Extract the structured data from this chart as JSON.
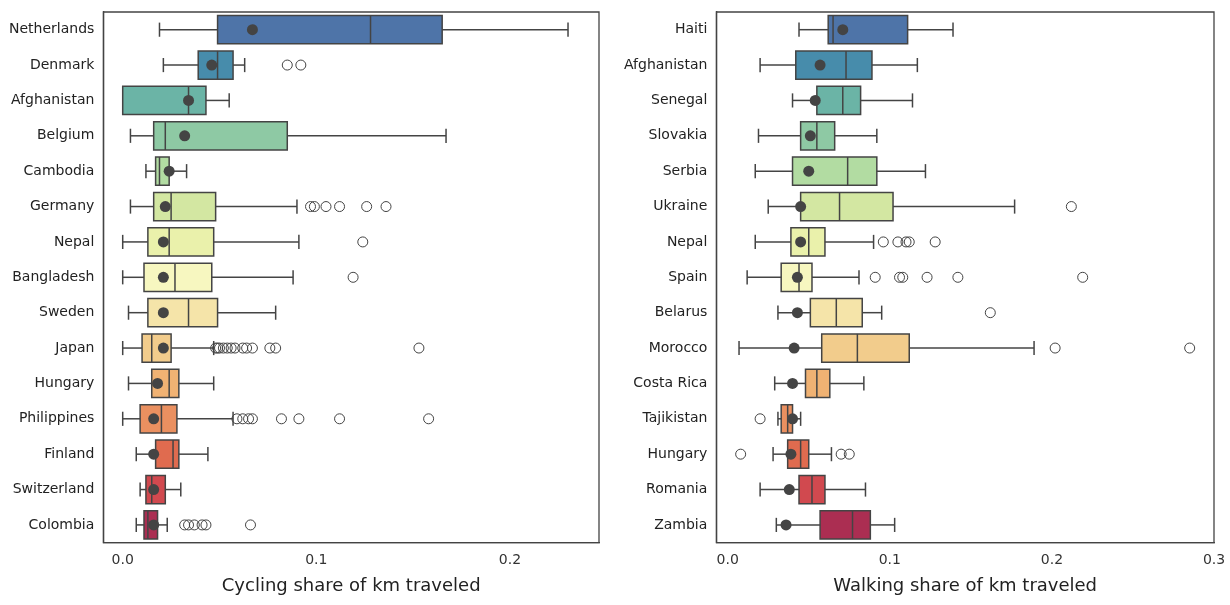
{
  "chart_data": [
    {
      "type": "box",
      "orientation": "horizontal",
      "xlabel": "Cycling share of km traveled",
      "categories": [
        "Netherlands",
        "Denmark",
        "Afghanistan",
        "Belgium",
        "Cambodia",
        "Germany",
        "Nepal",
        "Bangladesh",
        "Sweden",
        "Japan",
        "Hungary",
        "Philippines",
        "Finland",
        "Switzerland",
        "Colombia"
      ],
      "colors": [
        "#4e74a8",
        "#478cab",
        "#6bb4a6",
        "#8ec9a4",
        "#b2dca2",
        "#d3e7a2",
        "#eaf1ab",
        "#f7f7c0",
        "#f5e4a9",
        "#f2cc8c",
        "#f0b273",
        "#ea9060",
        "#e06b4f",
        "#d1494f",
        "#ab2e52"
      ],
      "boxes": [
        {
          "low": 0.019,
          "q1": 0.049,
          "median": 0.128,
          "q3": 0.165,
          "high": 0.23,
          "mean": 0.067
        },
        {
          "low": 0.021,
          "q1": 0.039,
          "median": 0.049,
          "q3": 0.057,
          "high": 0.063,
          "mean": 0.046,
          "outliers": [
            0.085,
            0.092
          ]
        },
        {
          "low": 0,
          "q1": 0,
          "median": 0.034,
          "q3": 0.043,
          "high": 0.055,
          "mean": 0.034
        },
        {
          "low": 0.004,
          "q1": 0.016,
          "median": 0.022,
          "q3": 0.085,
          "high": 0.167,
          "mean": 0.032
        },
        {
          "low": 0.012,
          "q1": 0.017,
          "median": 0.019,
          "q3": 0.024,
          "high": 0.033,
          "mean": 0.024
        },
        {
          "low": 0.004,
          "q1": 0.016,
          "median": 0.025,
          "q3": 0.048,
          "high": 0.09,
          "mean": 0.022,
          "outliers": [
            0.097,
            0.099,
            0.105,
            0.112,
            0.126,
            0.136
          ]
        },
        {
          "low": 0,
          "q1": 0.013,
          "median": 0.024,
          "q3": 0.047,
          "high": 0.091,
          "mean": 0.021,
          "outliers": [
            0.124
          ]
        },
        {
          "low": 0,
          "q1": 0.011,
          "median": 0.027,
          "q3": 0.046,
          "high": 0.088,
          "mean": 0.021,
          "outliers": [
            0.119
          ]
        },
        {
          "low": 0.003,
          "q1": 0.013,
          "median": 0.034,
          "q3": 0.049,
          "high": 0.079,
          "mean": 0.021
        },
        {
          "low": 0,
          "q1": 0.01,
          "median": 0.015,
          "q3": 0.025,
          "high": 0.047,
          "mean": 0.021,
          "outliers": [
            0.048,
            0.049,
            0.05,
            0.052,
            0.054,
            0.056,
            0.058,
            0.062,
            0.064,
            0.067,
            0.076,
            0.079,
            0.153
          ]
        },
        {
          "low": 0.003,
          "q1": 0.015,
          "median": 0.024,
          "q3": 0.029,
          "high": 0.047,
          "mean": 0.018
        },
        {
          "low": 0,
          "q1": 0.009,
          "median": 0.02,
          "q3": 0.028,
          "high": 0.057,
          "mean": 0.016,
          "outliers": [
            0.059,
            0.062,
            0.065,
            0.067,
            0.082,
            0.091,
            0.112,
            0.158
          ]
        },
        {
          "low": 0.007,
          "q1": 0.017,
          "median": 0.026,
          "q3": 0.029,
          "high": 0.044,
          "mean": 0.016
        },
        {
          "low": 0.009,
          "q1": 0.012,
          "median": 0.015,
          "q3": 0.022,
          "high": 0.03,
          "mean": 0.016
        },
        {
          "low": 0.007,
          "q1": 0.011,
          "median": 0.013,
          "q3": 0.018,
          "high": 0.023,
          "mean": 0.016,
          "outliers": [
            0.032,
            0.034,
            0.037,
            0.041,
            0.043,
            0.066
          ]
        }
      ],
      "xlim": [
        -0.01,
        0.246
      ],
      "xticks": [
        {
          "value": 0,
          "label": "0.0"
        },
        {
          "value": 0.1,
          "label": "0.1"
        },
        {
          "value": 0.2,
          "label": "0.2"
        }
      ]
    },
    {
      "type": "box",
      "orientation": "horizontal",
      "xlabel": "Walking share of km traveled",
      "categories": [
        "Haiti",
        "Afghanistan",
        "Senegal",
        "Slovakia",
        "Serbia",
        "Ukraine",
        "Nepal",
        "Spain",
        "Belarus",
        "Morocco",
        "Costa Rica",
        "Tajikistan",
        "Hungary",
        "Romania",
        "Zambia"
      ],
      "colors": [
        "#4e74a8",
        "#478cab",
        "#6bb4a6",
        "#8ec9a4",
        "#b2dca2",
        "#d3e7a2",
        "#eaf1ab",
        "#f7f7c0",
        "#f5e4a9",
        "#f2cc8c",
        "#f0b273",
        "#ea9060",
        "#e06b4f",
        "#d1494f",
        "#ab2e52"
      ],
      "boxes": [
        {
          "low": 0.044,
          "q1": 0.062,
          "median": 0.065,
          "q3": 0.111,
          "high": 0.139,
          "mean": 0.071
        },
        {
          "low": 0.02,
          "q1": 0.042,
          "median": 0.073,
          "q3": 0.089,
          "high": 0.117,
          "mean": 0.057
        },
        {
          "low": 0.04,
          "q1": 0.055,
          "median": 0.071,
          "q3": 0.082,
          "high": 0.114,
          "mean": 0.054
        },
        {
          "low": 0.019,
          "q1": 0.045,
          "median": 0.055,
          "q3": 0.066,
          "high": 0.092,
          "mean": 0.051
        },
        {
          "low": 0.017,
          "q1": 0.04,
          "median": 0.074,
          "q3": 0.092,
          "high": 0.122,
          "mean": 0.05
        },
        {
          "low": 0.025,
          "q1": 0.045,
          "median": 0.069,
          "q3": 0.102,
          "high": 0.177,
          "mean": 0.045,
          "outliers": [
            0.212
          ]
        },
        {
          "low": 0.017,
          "q1": 0.039,
          "median": 0.05,
          "q3": 0.06,
          "high": 0.09,
          "mean": 0.045,
          "outliers": [
            0.096,
            0.105,
            0.11,
            0.112,
            0.128
          ]
        },
        {
          "low": 0.012,
          "q1": 0.033,
          "median": 0.044,
          "q3": 0.052,
          "high": 0.081,
          "mean": 0.043,
          "outliers": [
            0.091,
            0.106,
            0.108,
            0.123,
            0.142,
            0.219
          ]
        },
        {
          "low": 0.031,
          "q1": 0.051,
          "median": 0.067,
          "q3": 0.083,
          "high": 0.095,
          "mean": 0.043,
          "outliers": [
            0.162
          ]
        },
        {
          "low": 0.007,
          "q1": 0.058,
          "median": 0.08,
          "q3": 0.112,
          "high": 0.189,
          "mean": 0.041,
          "outliers": [
            0.202,
            0.285
          ]
        },
        {
          "low": 0.029,
          "q1": 0.048,
          "median": 0.055,
          "q3": 0.063,
          "high": 0.084,
          "mean": 0.04
        },
        {
          "low": 0.031,
          "q1": 0.033,
          "median": 0.037,
          "q3": 0.04,
          "high": 0.045,
          "mean": 0.04,
          "outliers": [
            0.02
          ]
        },
        {
          "low": 0.028,
          "q1": 0.037,
          "median": 0.045,
          "q3": 0.05,
          "high": 0.064,
          "mean": 0.039,
          "outliers": [
            0.008,
            0.07,
            0.075
          ]
        },
        {
          "low": 0.02,
          "q1": 0.044,
          "median": 0.052,
          "q3": 0.06,
          "high": 0.085,
          "mean": 0.038
        },
        {
          "low": 0.03,
          "q1": 0.057,
          "median": 0.077,
          "q3": 0.088,
          "high": 0.103,
          "mean": 0.036
        }
      ],
      "xlim": [
        -0.007,
        0.3
      ],
      "xticks": [
        {
          "value": 0,
          "label": "0.0"
        },
        {
          "value": 0.1,
          "label": "0.1"
        },
        {
          "value": 0.2,
          "label": "0.2"
        },
        {
          "value": 0.3,
          "label": "0.3"
        }
      ]
    }
  ]
}
